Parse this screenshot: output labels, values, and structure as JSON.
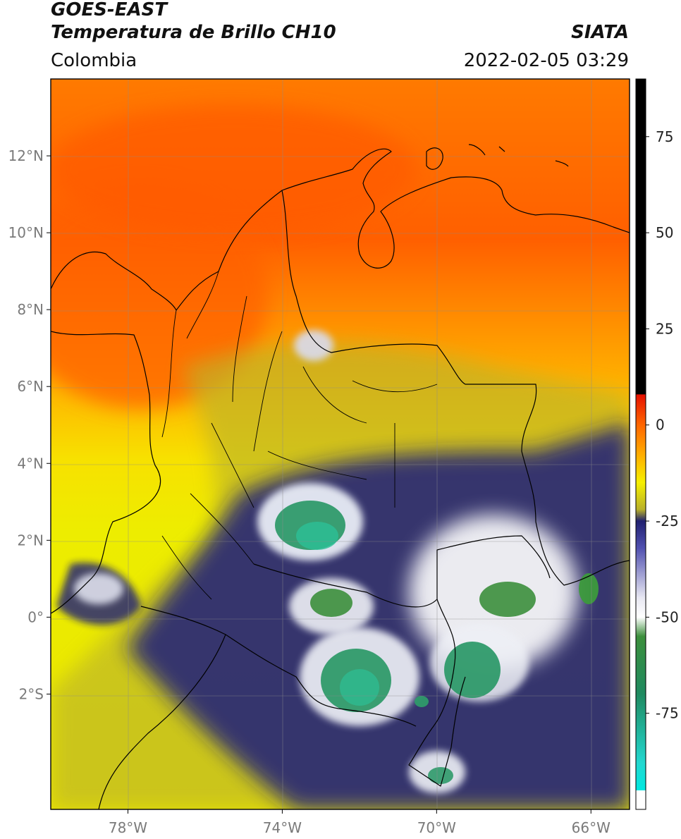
{
  "header": {
    "satellite": "GOES-EAST",
    "product": "Temperatura de Brillo CH10",
    "org": "SIATA",
    "region": "Colombia",
    "datetime": "2022-02-05 03:29"
  },
  "map": {
    "lon_range": [
      -80,
      -65
    ],
    "lat_range": [
      -5,
      14
    ],
    "lon_ticks": [
      {
        "value": -78,
        "label": "78°W"
      },
      {
        "value": -74,
        "label": "74°W"
      },
      {
        "value": -70,
        "label": "70°W"
      },
      {
        "value": -66,
        "label": "66°W"
      }
    ],
    "lat_ticks": [
      {
        "value": 12,
        "label": "12°N"
      },
      {
        "value": 10,
        "label": "10°N"
      },
      {
        "value": 8,
        "label": "8°N"
      },
      {
        "value": 6,
        "label": "6°N"
      },
      {
        "value": 4,
        "label": "4°N"
      },
      {
        "value": 2,
        "label": "2°N"
      },
      {
        "value": 0,
        "label": "0°"
      },
      {
        "value": -2,
        "label": "2°S"
      }
    ],
    "colors": {
      "warm_orange": "#ff6a00",
      "orange": "#ff9900",
      "yellow": "#f4ef00",
      "olive": "#b7b226",
      "navy": "#1a1d7a",
      "white": "#ffffff",
      "green": "#2e8b3d",
      "teal": "#2fb592"
    }
  },
  "colorbar": {
    "range": [
      -100,
      90
    ],
    "ticks": [
      {
        "value": 75,
        "label": "75"
      },
      {
        "value": 50,
        "label": "50"
      },
      {
        "value": 25,
        "label": "25"
      },
      {
        "value": 0,
        "label": "0"
      },
      {
        "value": -25,
        "label": "-25"
      },
      {
        "value": -50,
        "label": "-50"
      },
      {
        "value": -75,
        "label": "-75"
      }
    ],
    "stops": [
      {
        "value": 90,
        "color": "#000000"
      },
      {
        "value": 8,
        "color": "#000000"
      },
      {
        "value": 7.9,
        "color": "#e51000"
      },
      {
        "value": 0,
        "color": "#ff6600"
      },
      {
        "value": -8,
        "color": "#ffb000"
      },
      {
        "value": -15,
        "color": "#f6f000"
      },
      {
        "value": -22,
        "color": "#b8b02a"
      },
      {
        "value": -25,
        "color": "#202070"
      },
      {
        "value": -32,
        "color": "#5050b0"
      },
      {
        "value": -45,
        "color": "#e8e8f2"
      },
      {
        "value": -50,
        "color": "#ffffff"
      },
      {
        "value": -55,
        "color": "#3c8f3c"
      },
      {
        "value": -70,
        "color": "#1f8a60"
      },
      {
        "value": -88,
        "color": "#22d8d0"
      },
      {
        "value": -95,
        "color": "#00e8e0"
      },
      {
        "value": -95.1,
        "color": "#ffffff"
      },
      {
        "value": -100,
        "color": "#ffffff"
      }
    ]
  }
}
